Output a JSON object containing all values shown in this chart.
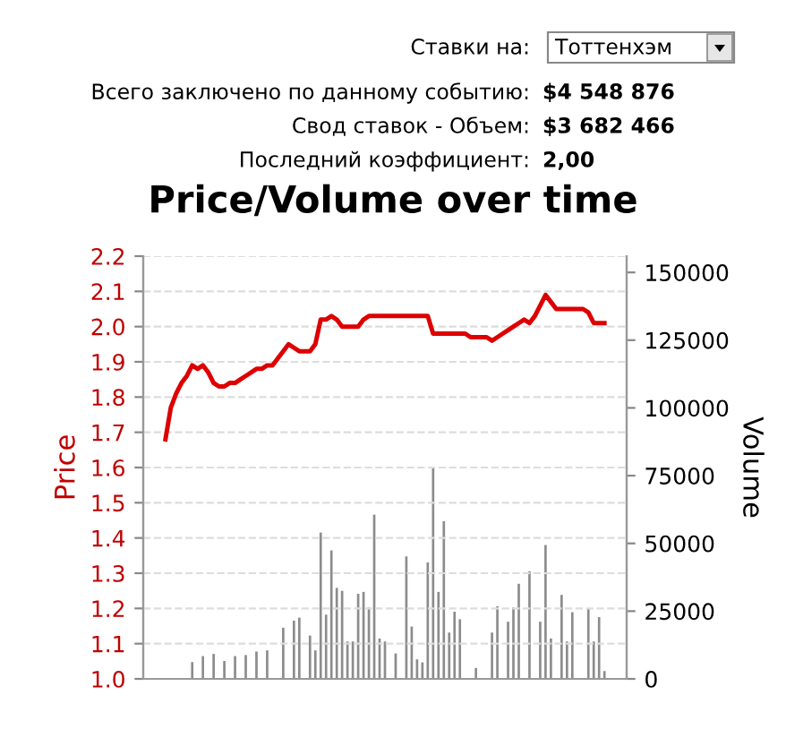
{
  "chart_data": {
    "type": "line",
    "title": "Price/Volume over time",
    "ylabel": "Price",
    "y2label": "Volume",
    "annotations": [
      "Ставки на:",
      "Тоттенхэм",
      "Всего заключено по данному событию:",
      "$4 548 876",
      "Свод ставок - Объем:",
      "$3 682 466",
      "Последний коэффициент:",
      "2,00"
    ],
    "categories": [
      null,
      null,
      null,
      null,
      null,
      null,
      null,
      null,
      null,
      null,
      null,
      null,
      null,
      null,
      null,
      null,
      null,
      null,
      null,
      null,
      null,
      null,
      null,
      null,
      null,
      null,
      null,
      null,
      null,
      null,
      null,
      null,
      null,
      null,
      null,
      null,
      null,
      null,
      null,
      null,
      null,
      null,
      null,
      null,
      null,
      null,
      null,
      null,
      null,
      null,
      null,
      null,
      null,
      null,
      null,
      null,
      null,
      null,
      null,
      null,
      null,
      null,
      null,
      null,
      null,
      null,
      null,
      null,
      null,
      null,
      null,
      null,
      null,
      null,
      null,
      null,
      null,
      null,
      null,
      null,
      null,
      null,
      null
    ],
    "ylim": [
      1.0,
      2.2
    ],
    "yticks": [
      {
        "value": 1,
        "label": "1.0"
      },
      1.1,
      1.2,
      1.3,
      1.4,
      1.5,
      1.6,
      1.7,
      1.8,
      1.9,
      {
        "value": 2,
        "label": "2.0"
      },
      2.1,
      2.2
    ],
    "y2lim": [
      0,
      156000
    ],
    "y2ticks": [
      0,
      25000,
      50000,
      75000,
      100000,
      125000,
      150000
    ],
    "grid": "y",
    "tick_labels": "y",
    "series": [
      {
        "type": "bar",
        "axis": "y2",
        "color": "#8c8c8c",
        "values": [
          null,
          null,
          null,
          null,
          null,
          6200,
          null,
          8400,
          null,
          9200,
          null,
          6600,
          null,
          8400,
          null,
          8800,
          null,
          10100,
          null,
          10500,
          null,
          null,
          18900,
          null,
          21500,
          22600,
          null,
          16000,
          10500,
          54000,
          23700,
          47400,
          33600,
          32500,
          13800,
          13800,
          31400,
          32100,
          26400,
          60600,
          14900,
          13800,
          null,
          9400,
          null,
          45200,
          19300,
          7200,
          6100,
          43000,
          78200,
          32100,
          58200,
          17100,
          24800,
          22000,
          null,
          null,
          4000,
          null,
          null,
          17100,
          26800,
          null,
          21100,
          26400,
          35100,
          null,
          39700,
          null,
          21100,
          49400,
          14900,
          null,
          31000,
          13800,
          24600,
          null,
          null,
          25900,
          13800,
          22800,
          2900
        ]
      },
      {
        "axis": "y",
        "color": "#dd0000",
        "values": [
          1.68,
          1.77,
          1.81,
          1.84,
          1.86,
          1.89,
          1.88,
          1.89,
          1.87,
          1.84,
          1.83,
          1.83,
          1.84,
          1.84,
          1.85,
          1.86,
          1.87,
          1.88,
          1.88,
          1.89,
          1.89,
          1.91,
          1.93,
          1.95,
          1.94,
          1.93,
          1.93,
          1.93,
          1.95,
          2.02,
          2.02,
          2.03,
          2.02,
          2.0,
          2.0,
          2.0,
          2.0,
          2.02,
          2.03,
          2.03,
          2.03,
          2.03,
          2.03,
          2.03,
          2.03,
          2.03,
          2.03,
          2.03,
          2.03,
          2.03,
          1.98,
          1.98,
          1.98,
          1.98,
          1.98,
          1.98,
          1.98,
          1.97,
          1.97,
          1.97,
          1.97,
          1.96,
          1.97,
          1.98,
          1.99,
          2.0,
          2.01,
          2.02,
          2.01,
          2.03,
          2.06,
          2.09,
          2.07,
          2.05,
          2.05,
          2.05,
          2.05,
          2.05,
          2.05,
          2.04,
          2.01,
          2.01,
          2.01
        ]
      }
    ]
  }
}
